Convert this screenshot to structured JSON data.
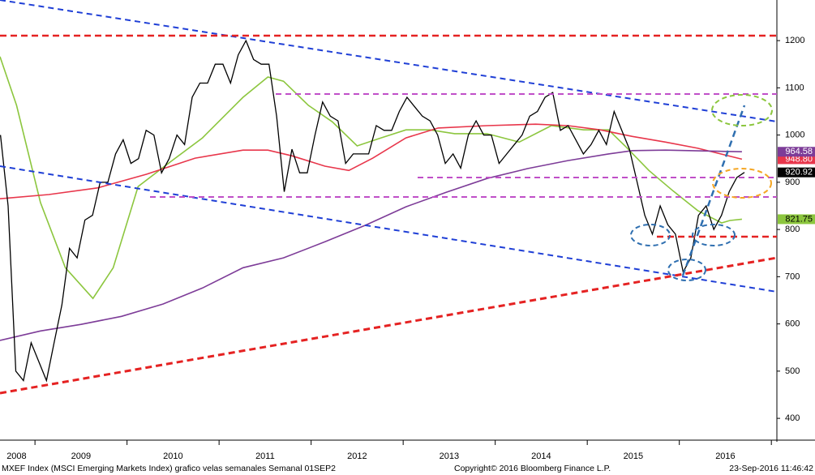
{
  "chart_data": {
    "type": "line",
    "xlim": [
      2008.62,
      2017.06
    ],
    "ylim": [
      359,
      1286
    ],
    "yticks": [
      400,
      500,
      600,
      700,
      800,
      900,
      1000,
      1100,
      1200
    ],
    "xticks": [
      {
        "value": 2008.8,
        "label": "2008"
      },
      {
        "value": 2009.5,
        "label": "2009"
      },
      {
        "value": 2010.5,
        "label": "2010"
      },
      {
        "value": 2011.5,
        "label": "2011"
      },
      {
        "value": 2012.5,
        "label": "2012"
      },
      {
        "value": 2013.5,
        "label": "2013"
      },
      {
        "value": 2014.5,
        "label": "2014"
      },
      {
        "value": 2015.5,
        "label": "2015"
      },
      {
        "value": 2016.5,
        "label": "2016"
      }
    ],
    "xminor": [
      2009,
      2010,
      2011,
      2012,
      2013,
      2014,
      2015,
      2016,
      2017
    ],
    "series": [
      {
        "color": "#000000",
        "tag_text": "#ffffff",
        "last_label": "920.92",
        "x": [
          2008.625,
          2008.708,
          2008.792,
          2008.875,
          2008.958,
          2009.042,
          2009.125,
          2009.208,
          2009.292,
          2009.375,
          2009.458,
          2009.542,
          2009.625,
          2009.708,
          2009.792,
          2009.875,
          2009.958,
          2010.042,
          2010.125,
          2010.208,
          2010.292,
          2010.375,
          2010.458,
          2010.542,
          2010.625,
          2010.708,
          2010.792,
          2010.875,
          2010.958,
          2011.042,
          2011.125,
          2011.208,
          2011.292,
          2011.375,
          2011.458,
          2011.542,
          2011.625,
          2011.708,
          2011.792,
          2011.875,
          2011.958,
          2012.042,
          2012.125,
          2012.208,
          2012.292,
          2012.375,
          2012.458,
          2012.542,
          2012.625,
          2012.708,
          2012.792,
          2012.875,
          2012.958,
          2013.042,
          2013.125,
          2013.208,
          2013.292,
          2013.375,
          2013.458,
          2013.542,
          2013.625,
          2013.708,
          2013.792,
          2013.875,
          2013.958,
          2014.042,
          2014.125,
          2014.208,
          2014.292,
          2014.375,
          2014.458,
          2014.542,
          2014.625,
          2014.708,
          2014.792,
          2014.875,
          2014.958,
          2015.042,
          2015.125,
          2015.208,
          2015.292,
          2015.375,
          2015.458,
          2015.542,
          2015.625,
          2015.708,
          2015.792,
          2015.875,
          2015.958,
          2016.042,
          2016.125,
          2016.208,
          2016.292,
          2016.375,
          2016.458,
          2016.542,
          2016.625,
          2016.708
        ],
        "values": [
          1000,
          850,
          500,
          480,
          560,
          520,
          480,
          560,
          640,
          760,
          740,
          820,
          830,
          900,
          900,
          960,
          990,
          940,
          950,
          1010,
          1000,
          920,
          950,
          1000,
          980,
          1080,
          1110,
          1110,
          1150,
          1150,
          1110,
          1170,
          1200,
          1160,
          1150,
          1150,
          1040,
          880,
          970,
          920,
          920,
          1000,
          1070,
          1040,
          1030,
          940,
          960,
          960,
          960,
          1020,
          1010,
          1010,
          1050,
          1080,
          1060,
          1040,
          1030,
          1000,
          940,
          960,
          930,
          1000,
          1030,
          1000,
          1000,
          940,
          960,
          980,
          1000,
          1040,
          1050,
          1080,
          1090,
          1010,
          1020,
          990,
          960,
          980,
          1010,
          980,
          1050,
          1010,
          970,
          900,
          830,
          790,
          850,
          810,
          790,
          710,
          740,
          830,
          850,
          800,
          830,
          880,
          910,
          920.92
        ]
      },
      {
        "color": "#8cc63e",
        "tag_text": "#000000",
        "last_label": "821.75",
        "x": [
          2008.62,
          2008.8,
          2009.06,
          2009.33,
          2009.63,
          2009.85,
          2010.12,
          2010.47,
          2010.82,
          2011.26,
          2011.53,
          2011.7,
          2011.97,
          2012.23,
          2012.5,
          2012.76,
          2013.03,
          2013.29,
          2013.56,
          2013.91,
          2014.26,
          2014.61,
          2014.96,
          2015.23,
          2015.41,
          2015.67,
          2015.93,
          2016.2,
          2016.46,
          2016.55,
          2016.68
        ],
        "values": [
          1166,
          1063,
          857,
          719,
          654,
          719,
          891,
          943,
          994,
          1080,
          1123,
          1114,
          1063,
          1028,
          977,
          994,
          1011,
          1011,
          1003,
          1003,
          985,
          1020,
          1011,
          1011,
          977,
          925,
          882,
          840,
          814,
          819,
          821.75
        ]
      },
      {
        "color": "#e8364b",
        "tag_text": "#ffffff",
        "last_label": "948.80",
        "x": [
          2008.62,
          2009.15,
          2009.68,
          2010.21,
          2010.74,
          2011.26,
          2011.53,
          2011.79,
          2012.15,
          2012.41,
          2012.67,
          2013.03,
          2013.38,
          2013.91,
          2014.44,
          2014.79,
          2015.14,
          2015.49,
          2015.85,
          2016.2,
          2016.68
        ],
        "values": [
          865,
          874,
          888,
          917,
          951,
          968,
          968,
          956,
          934,
          925,
          951,
          994,
          1015,
          1020,
          1023,
          1020,
          1011,
          997,
          985,
          972,
          948.8
        ]
      },
      {
        "color": "#7d3c98",
        "tag_text": "#ffffff",
        "last_label": "964.58",
        "x": [
          2008.62,
          2009.06,
          2009.5,
          2009.94,
          2010.39,
          2010.82,
          2011.26,
          2011.7,
          2012.15,
          2012.59,
          2013.03,
          2013.47,
          2013.91,
          2014.35,
          2014.79,
          2015.23,
          2015.49,
          2015.85,
          2016.68
        ],
        "values": [
          565,
          585,
          599,
          616,
          642,
          676,
          719,
          740,
          774,
          809,
          848,
          879,
          908,
          929,
          946,
          960,
          967,
          968,
          964.58
        ]
      }
    ],
    "footer": {
      "left": "MXEF Index (MSCI Emerging Markets Index) grafico velas semanales  Semanal 01SEP2",
      "center": "Copyright© 2016 Bloomberg Finance L.P.",
      "right": "23-Sep-2016 11:46:42"
    }
  }
}
